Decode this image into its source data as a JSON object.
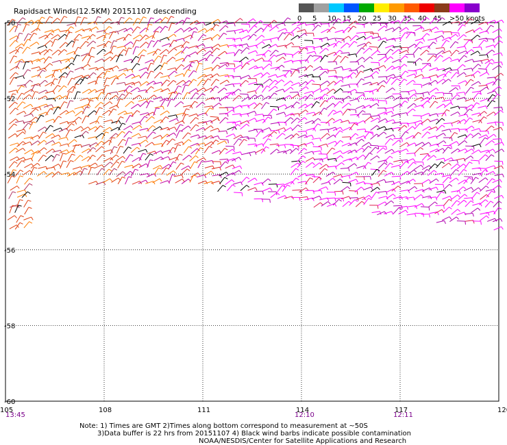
{
  "chart_data": {
    "type": "wind-barb-map",
    "title": "Rapidsact Winds(12.5KM) 20151107 descending",
    "x_ticks": [
      "105",
      "108",
      "111",
      "114",
      "117",
      "120"
    ],
    "y_ticks": [
      "-50",
      "-52",
      "-54",
      "-56",
      "-58",
      "-60"
    ],
    "xlim": [
      105,
      120
    ],
    "ylim": [
      -60,
      -50
    ],
    "grid": "dotted",
    "time_labels": [
      {
        "lon": 105,
        "text": "13:45"
      },
      {
        "lon": 114,
        "text": "12:10"
      },
      {
        "lon": 117,
        "text": "12:11"
      }
    ],
    "legend": {
      "placement": "top-right",
      "unit": "knots",
      "labels": [
        "0",
        "5",
        "10",
        "15",
        "20",
        "25",
        "30",
        "35",
        "40",
        "45",
        ">50"
      ],
      "colors": [
        "#555555",
        "#a0a0a0",
        "#00c8ff",
        "#0055ff",
        "#00aa00",
        "#ffee00",
        "#ff9a00",
        "#ff5a00",
        "#ee0000",
        "#8b3a1a",
        "#ff00ff",
        "#8800cc"
      ]
    },
    "wind_field": {
      "coverage": "swath covering roughly lat -50 to -55.5, lon 105 to 120; narrow strip near lon 105-105.6 extends to -55.5",
      "dominant_speeds_knots": "25-50",
      "colors_by_region": {
        "west": "#e04010",
        "center": "#c000c0",
        "east": "#ff00ff"
      }
    }
  },
  "notes": {
    "line1": "Note: 1) Times are GMT 2)Times along bottom correspond to measurement at ~50S",
    "line2": "3)Data buffer is 22 hrs from 20151107 4) Black wind barbs indicate possible contamination",
    "line3": "NOAA/NESDIS/Center for Satellite Applications and Research"
  }
}
